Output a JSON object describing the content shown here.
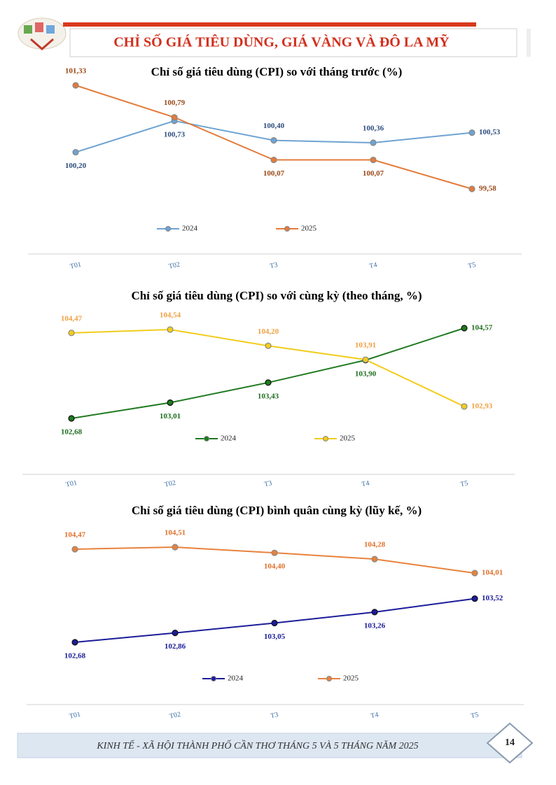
{
  "header": {
    "title": "CHỈ SỐ GIÁ TIÊU DÙNG, GIÁ VÀNG VÀ ĐÔ LA MỸ"
  },
  "chart_data": [
    {
      "type": "line",
      "title": "Chỉ số giá tiêu dùng (CPI) so với tháng trước (%)",
      "categories": [
        "T01",
        "T02",
        "T3",
        "T4",
        "T5"
      ],
      "series": [
        {
          "name": "2024",
          "color": "#6ea3d2",
          "values": [
            100.2,
            100.73,
            100.4,
            100.36,
            100.53
          ],
          "value_labels": [
            "100,20",
            "100,73",
            "100,40",
            "100,36",
            "100,53"
          ]
        },
        {
          "name": "2025",
          "color": "#e37b3a",
          "values": [
            101.33,
            100.79,
            100.07,
            100.07,
            99.58
          ],
          "value_labels": [
            "101,33",
            "100,79",
            "100,07",
            "100,07",
            "99,58"
          ]
        }
      ]
    },
    {
      "type": "line",
      "title": "Chỉ số giá tiêu dùng (CPI) so với cùng kỳ (theo tháng, %)",
      "categories": [
        "T01",
        "T02",
        "T3",
        "T4",
        "T5"
      ],
      "series": [
        {
          "name": "2024",
          "color": "#1f7a1f",
          "values": [
            102.68,
            103.01,
            103.43,
            103.9,
            104.57
          ],
          "value_labels": [
            "102,68",
            "103,01",
            "103,43",
            "103,90",
            "104,57"
          ]
        },
        {
          "name": "2025",
          "color": "#f2cc1a",
          "values": [
            104.47,
            104.54,
            104.2,
            103.91,
            102.93
          ],
          "value_labels": [
            "104,47",
            "104,54",
            "104,20",
            "103,91",
            "102,93"
          ]
        }
      ]
    },
    {
      "type": "line",
      "title": "Chỉ số giá tiêu dùng (CPI) bình quân cùng kỳ (lũy kế, %)",
      "categories": [
        "T01",
        "T02",
        "T3",
        "T4",
        "T5"
      ],
      "series": [
        {
          "name": "2024",
          "color": "#1c1c9a",
          "values": [
            102.68,
            102.86,
            103.05,
            103.26,
            103.52
          ],
          "value_labels": [
            "102,68",
            "102,86",
            "103,05",
            "103,26",
            "103,52"
          ]
        },
        {
          "name": "2025",
          "color": "#e8823d",
          "values": [
            104.47,
            104.51,
            104.4,
            104.28,
            104.01
          ],
          "value_labels": [
            "104,47",
            "104,51",
            "104,40",
            "104,28",
            "104,01"
          ]
        }
      ]
    }
  ],
  "footer": {
    "text": "KINH TẾ - XÃ HỘI THÀNH PHỐ CẦN THƠ THÁNG 5 VÀ 5 THÁNG NĂM 2025",
    "page": "14"
  }
}
